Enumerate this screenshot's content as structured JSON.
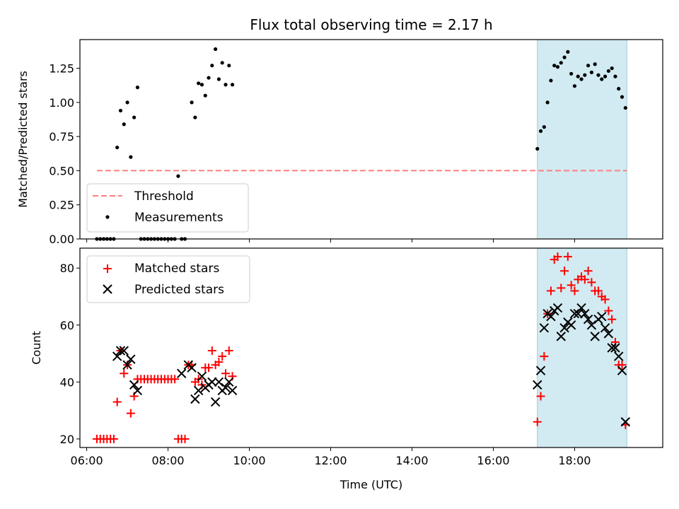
{
  "title": "Flux total observing time = 2.17 h",
  "colors": {
    "threshold": "#ff7f7f",
    "measurements": "#000000",
    "matched": "#ff0000",
    "predicted": "#000000",
    "highlight": "#add8e6"
  },
  "chart_data": [
    {
      "type": "scatter",
      "ylabel": "Matched/Predicted stars",
      "xlabel": "",
      "xlim": [
        "05:50",
        "20:10"
      ],
      "ylim": [
        0,
        1.46
      ],
      "yticks": [
        0.0,
        0.25,
        0.5,
        0.75,
        1.0,
        1.25
      ],
      "ytick_labels": [
        "0.00",
        "0.25",
        "0.50",
        "0.75",
        "1.00",
        "1.25"
      ],
      "highlight_span": [
        "17:05",
        "19:17"
      ],
      "threshold": {
        "name": "Threshold",
        "y": 0.5,
        "x_range": [
          "06:15",
          "19:17"
        ],
        "style": "dashed"
      },
      "legend": {
        "placement": "lower-left",
        "entries": [
          "Threshold",
          "Measurements"
        ]
      },
      "series": [
        {
          "name": "Measurements",
          "marker": "dot",
          "points": [
            [
              "06:15",
              0
            ],
            [
              "06:20",
              0
            ],
            [
              "06:25",
              0
            ],
            [
              "06:30",
              0
            ],
            [
              "06:35",
              0
            ],
            [
              "06:40",
              0
            ],
            [
              "06:45",
              0.67
            ],
            [
              "06:50",
              0.94
            ],
            [
              "06:55",
              0.84
            ],
            [
              "07:00",
              1.0
            ],
            [
              "07:05",
              0.6
            ],
            [
              "07:10",
              0.89
            ],
            [
              "07:15",
              1.11
            ],
            [
              "07:20",
              0
            ],
            [
              "07:25",
              0
            ],
            [
              "07:30",
              0
            ],
            [
              "07:35",
              0
            ],
            [
              "07:40",
              0
            ],
            [
              "07:45",
              0
            ],
            [
              "07:50",
              0
            ],
            [
              "07:55",
              0
            ],
            [
              "08:00",
              0
            ],
            [
              "08:05",
              0
            ],
            [
              "08:10",
              0
            ],
            [
              "08:15",
              0.46
            ],
            [
              "08:20",
              0
            ],
            [
              "08:25",
              0
            ],
            [
              "08:35",
              1.0
            ],
            [
              "08:40",
              0.89
            ],
            [
              "08:45",
              1.14
            ],
            [
              "08:50",
              1.13
            ],
            [
              "08:55",
              1.05
            ],
            [
              "09:00",
              1.18
            ],
            [
              "09:05",
              1.27
            ],
            [
              "09:10",
              1.39
            ],
            [
              "09:15",
              1.17
            ],
            [
              "09:20",
              1.29
            ],
            [
              "09:25",
              1.13
            ],
            [
              "09:30",
              1.27
            ],
            [
              "09:35",
              1.13
            ],
            [
              "17:05",
              0.66
            ],
            [
              "17:10",
              0.79
            ],
            [
              "17:15",
              0.82
            ],
            [
              "17:20",
              1.0
            ],
            [
              "17:25",
              1.16
            ],
            [
              "17:30",
              1.27
            ],
            [
              "17:35",
              1.26
            ],
            [
              "17:40",
              1.29
            ],
            [
              "17:45",
              1.33
            ],
            [
              "17:50",
              1.37
            ],
            [
              "17:55",
              1.21
            ],
            [
              "18:00",
              1.12
            ],
            [
              "18:05",
              1.19
            ],
            [
              "18:10",
              1.17
            ],
            [
              "18:15",
              1.2
            ],
            [
              "18:20",
              1.27
            ],
            [
              "18:25",
              1.22
            ],
            [
              "18:30",
              1.28
            ],
            [
              "18:35",
              1.2
            ],
            [
              "18:40",
              1.17
            ],
            [
              "18:45",
              1.19
            ],
            [
              "18:50",
              1.23
            ],
            [
              "18:55",
              1.25
            ],
            [
              "19:00",
              1.19
            ],
            [
              "19:05",
              1.1
            ],
            [
              "19:10",
              1.04
            ],
            [
              "19:15",
              0.96
            ]
          ]
        }
      ]
    },
    {
      "type": "scatter",
      "ylabel": "Count",
      "xlabel": "Time (UTC)",
      "xlim": [
        "05:50",
        "20:10"
      ],
      "ylim": [
        17,
        87
      ],
      "yticks": [
        20,
        40,
        60,
        80
      ],
      "ytick_labels": [
        "20",
        "40",
        "60",
        "80"
      ],
      "xticks": [
        "06:00",
        "08:00",
        "10:00",
        "12:00",
        "14:00",
        "16:00",
        "18:00"
      ],
      "xtick_labels": [
        "06:00",
        "08:00",
        "10:00",
        "12:00",
        "14:00",
        "16:00",
        "18:00"
      ],
      "highlight_span": [
        "17:05",
        "19:17"
      ],
      "legend": {
        "placement": "upper-left",
        "entries": [
          "Matched stars",
          "Predicted stars"
        ]
      },
      "series": [
        {
          "name": "Matched stars",
          "marker": "plus",
          "points": [
            [
              "06:15",
              20
            ],
            [
              "06:20",
              20
            ],
            [
              "06:25",
              20
            ],
            [
              "06:30",
              20
            ],
            [
              "06:35",
              20
            ],
            [
              "06:40",
              20
            ],
            [
              "06:45",
              33
            ],
            [
              "06:50",
              51
            ],
            [
              "06:55",
              43
            ],
            [
              "07:00",
              46
            ],
            [
              "07:05",
              29
            ],
            [
              "07:10",
              35
            ],
            [
              "07:15",
              41
            ],
            [
              "07:20",
              41
            ],
            [
              "07:25",
              41
            ],
            [
              "07:30",
              41
            ],
            [
              "07:35",
              41
            ],
            [
              "07:40",
              41
            ],
            [
              "07:45",
              41
            ],
            [
              "07:50",
              41
            ],
            [
              "07:55",
              41
            ],
            [
              "08:00",
              41
            ],
            [
              "08:05",
              41
            ],
            [
              "08:10",
              41
            ],
            [
              "08:15",
              20
            ],
            [
              "08:20",
              20
            ],
            [
              "08:25",
              20
            ],
            [
              "08:30",
              46
            ],
            [
              "08:35",
              46
            ],
            [
              "08:40",
              40
            ],
            [
              "08:45",
              41
            ],
            [
              "08:50",
              39
            ],
            [
              "08:55",
              45
            ],
            [
              "09:00",
              45
            ],
            [
              "09:05",
              51
            ],
            [
              "09:10",
              46
            ],
            [
              "09:15",
              47
            ],
            [
              "09:20",
              49
            ],
            [
              "09:25",
              43
            ],
            [
              "09:30",
              51
            ],
            [
              "09:35",
              42
            ],
            [
              "17:05",
              26
            ],
            [
              "17:10",
              35
            ],
            [
              "17:15",
              49
            ],
            [
              "17:20",
              64
            ],
            [
              "17:25",
              72
            ],
            [
              "17:30",
              83
            ],
            [
              "17:35",
              84
            ],
            [
              "17:40",
              73
            ],
            [
              "17:45",
              79
            ],
            [
              "17:50",
              84
            ],
            [
              "17:55",
              74
            ],
            [
              "18:00",
              72
            ],
            [
              "18:05",
              76
            ],
            [
              "18:10",
              77
            ],
            [
              "18:15",
              76
            ],
            [
              "18:20",
              79
            ],
            [
              "18:25",
              75
            ],
            [
              "18:30",
              72
            ],
            [
              "18:35",
              72
            ],
            [
              "18:40",
              70
            ],
            [
              "18:45",
              69
            ],
            [
              "18:50",
              65
            ],
            [
              "18:55",
              62
            ],
            [
              "19:00",
              54
            ],
            [
              "19:05",
              46
            ],
            [
              "19:10",
              46
            ],
            [
              "19:15",
              25
            ]
          ]
        },
        {
          "name": "Predicted stars",
          "marker": "x",
          "points": [
            [
              "06:45",
              49
            ],
            [
              "06:50",
              51
            ],
            [
              "06:55",
              51
            ],
            [
              "07:00",
              46
            ],
            [
              "07:05",
              48
            ],
            [
              "07:10",
              39
            ],
            [
              "07:15",
              37
            ],
            [
              "08:20",
              43
            ],
            [
              "08:30",
              46
            ],
            [
              "08:35",
              45
            ],
            [
              "08:40",
              34
            ],
            [
              "08:45",
              37
            ],
            [
              "08:50",
              42
            ],
            [
              "08:55",
              38
            ],
            [
              "09:00",
              39
            ],
            [
              "09:05",
              40
            ],
            [
              "09:10",
              33
            ],
            [
              "09:15",
              40
            ],
            [
              "09:20",
              37
            ],
            [
              "09:25",
              38
            ],
            [
              "09:30",
              40
            ],
            [
              "09:35",
              37
            ],
            [
              "17:05",
              39
            ],
            [
              "17:10",
              44
            ],
            [
              "17:15",
              59
            ],
            [
              "17:20",
              64
            ],
            [
              "17:25",
              63
            ],
            [
              "17:30",
              65
            ],
            [
              "17:35",
              66
            ],
            [
              "17:40",
              56
            ],
            [
              "17:45",
              59
            ],
            [
              "17:50",
              61
            ],
            [
              "17:55",
              60
            ],
            [
              "18:00",
              64
            ],
            [
              "18:05",
              64
            ],
            [
              "18:10",
              66
            ],
            [
              "18:15",
              64
            ],
            [
              "18:20",
              62
            ],
            [
              "18:25",
              60
            ],
            [
              "18:30",
              56
            ],
            [
              "18:35",
              62
            ],
            [
              "18:40",
              63
            ],
            [
              "18:45",
              59
            ],
            [
              "18:50",
              57
            ],
            [
              "18:55",
              52
            ],
            [
              "19:00",
              52
            ],
            [
              "19:05",
              49
            ],
            [
              "19:10",
              44
            ],
            [
              "19:15",
              26
            ]
          ]
        }
      ]
    }
  ]
}
